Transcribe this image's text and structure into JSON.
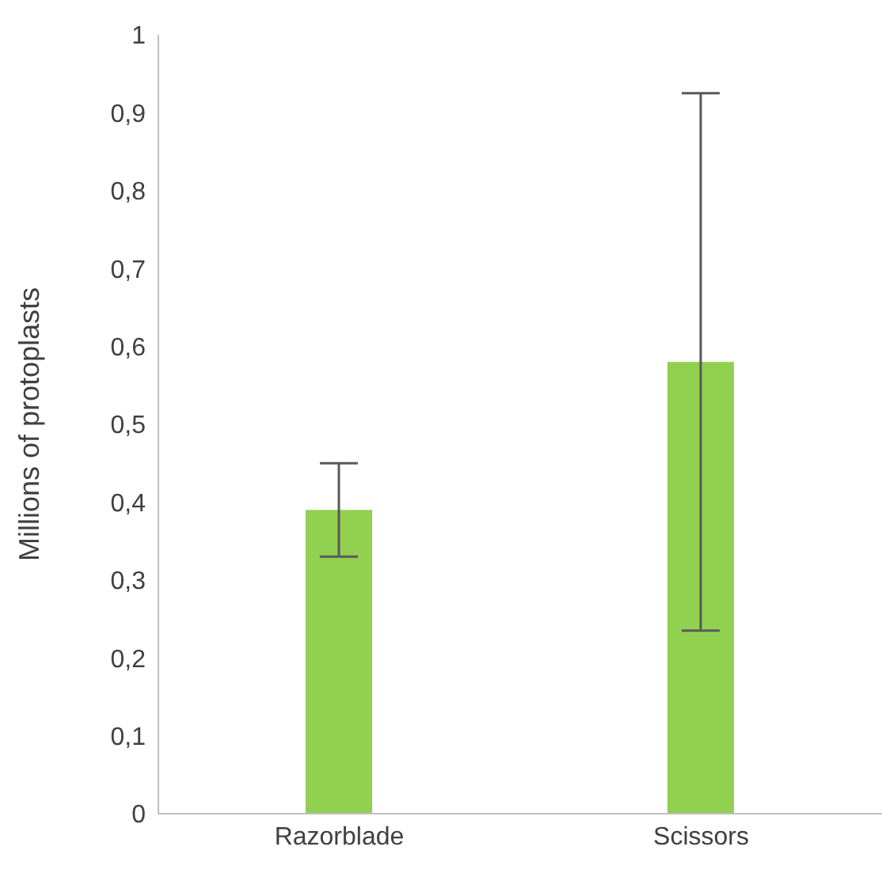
{
  "chart_data": {
    "type": "bar",
    "ylabel": "Millions of protoplasts",
    "categories": [
      "Razorblade",
      "Scissors"
    ],
    "values": [
      0.39,
      0.58
    ],
    "errors": [
      0.06,
      0.345
    ],
    "color": "#92d050",
    "ylim": [
      0,
      1
    ],
    "yticks": [
      {
        "value": 0,
        "label": "0"
      },
      {
        "value": 0.1,
        "label": "0,1"
      },
      {
        "value": 0.2,
        "label": "0,2"
      },
      {
        "value": 0.3,
        "label": "0,3"
      },
      {
        "value": 0.4,
        "label": "0,4"
      },
      {
        "value": 0.5,
        "label": "0,5"
      },
      {
        "value": 0.6,
        "label": "0,6"
      },
      {
        "value": 0.7,
        "label": "0,7"
      },
      {
        "value": 0.8,
        "label": "0,8"
      },
      {
        "value": 0.9,
        "label": "0,9"
      },
      {
        "value": 1,
        "label": "1"
      }
    ],
    "grid": false,
    "legend": false
  }
}
